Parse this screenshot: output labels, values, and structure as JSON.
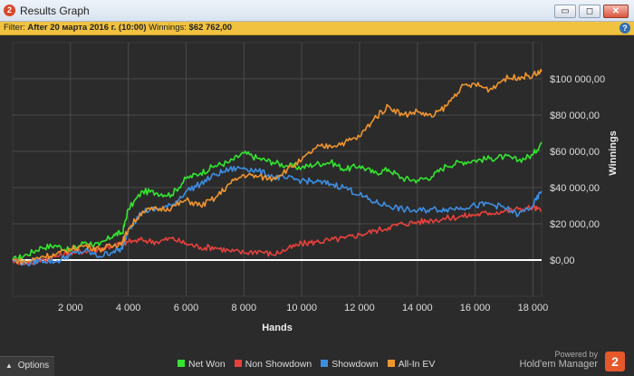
{
  "window": {
    "title": "Results Graph",
    "app_icon": "2",
    "buttons": {
      "minimize": "▭",
      "restore": "◻",
      "close": "✕"
    }
  },
  "filter": {
    "label": "Filter:",
    "date_value": "After 20 марта 2016 г. (10:00)",
    "winnings_label": "Winnings:",
    "winnings_value": "$62 762,00",
    "help_icon": "?"
  },
  "chart_data": {
    "type": "line",
    "xlabel": "Hands",
    "ylabel": "Winnings",
    "xlim": [
      0,
      18300
    ],
    "ylim": [
      -20000,
      120000
    ],
    "x_ticks": [
      2000,
      4000,
      6000,
      8000,
      10000,
      12000,
      14000,
      16000,
      18000
    ],
    "x_tick_labels": [
      "2 000",
      "4 000",
      "6 000",
      "8 000",
      "10 000",
      "12 000",
      "14 000",
      "16 000",
      "18 000"
    ],
    "y_ticks": [
      0,
      20000,
      40000,
      60000,
      80000,
      100000
    ],
    "y_tick_labels": [
      "$0,00",
      "$20 000,00",
      "$40 000,00",
      "$60 000,00",
      "$80 000,00",
      "$100 000,00"
    ],
    "grid": true,
    "legend": "bottom",
    "colors": {
      "background": "#2b2b2b",
      "grid": "#4a4a4a",
      "zero_line": "#ffffff"
    },
    "series": [
      {
        "name": "Net Won",
        "color": "#33e62e",
        "x": [
          0,
          500,
          1000,
          1500,
          2000,
          2500,
          3000,
          3500,
          3800,
          4000,
          4500,
          5000,
          5500,
          6000,
          6500,
          7000,
          7500,
          8000,
          8500,
          9000,
          9500,
          10000,
          10500,
          11000,
          11500,
          12000,
          12500,
          13000,
          13500,
          14000,
          14500,
          15000,
          15500,
          16000,
          16500,
          17000,
          17500,
          18000,
          18300
        ],
        "y": [
          0,
          3000,
          7000,
          8000,
          5000,
          10000,
          8000,
          14000,
          15000,
          28000,
          38000,
          37000,
          36000,
          45000,
          48000,
          52000,
          54000,
          59000,
          56000,
          54000,
          52000,
          51000,
          53000,
          54000,
          50000,
          52000,
          48000,
          50000,
          45000,
          44000,
          46000,
          52000,
          54000,
          55000,
          56000,
          57000,
          55000,
          58000,
          65000
        ]
      },
      {
        "name": "Non Showdown",
        "color": "#e8413c",
        "x": [
          0,
          500,
          1000,
          1500,
          2000,
          2500,
          3000,
          3500,
          4000,
          4500,
          5000,
          5500,
          6000,
          6500,
          7000,
          7500,
          8000,
          8500,
          9000,
          9500,
          10000,
          10500,
          11000,
          11500,
          12000,
          12500,
          13000,
          13500,
          14000,
          14500,
          15000,
          15500,
          16000,
          16500,
          17000,
          17500,
          18000,
          18300
        ],
        "y": [
          0,
          -2000,
          0,
          2000,
          4000,
          5000,
          6000,
          8000,
          10000,
          11000,
          10000,
          12000,
          9000,
          7000,
          7000,
          5000,
          4000,
          5000,
          3000,
          6000,
          9000,
          10000,
          11000,
          12000,
          14000,
          16000,
          18000,
          20000,
          21000,
          22000,
          23000,
          24000,
          25000,
          26000,
          27000,
          28000,
          29000,
          27000
        ]
      },
      {
        "name": "Showdown",
        "color": "#3d8ee3",
        "x": [
          0,
          500,
          1000,
          1500,
          2000,
          2500,
          3000,
          3500,
          3800,
          4000,
          4500,
          5000,
          5500,
          6000,
          6500,
          7000,
          7500,
          8000,
          8500,
          9000,
          9500,
          10000,
          10500,
          11000,
          11500,
          12000,
          12500,
          13000,
          13500,
          14000,
          14500,
          15000,
          15500,
          16000,
          16500,
          17000,
          17500,
          18000,
          18300
        ],
        "y": [
          0,
          -2000,
          0,
          -1000,
          3000,
          5000,
          2000,
          5000,
          6000,
          17000,
          27000,
          28000,
          30000,
          38000,
          42000,
          47000,
          50000,
          51000,
          49000,
          46000,
          45000,
          44000,
          43000,
          42000,
          40000,
          36000,
          32000,
          30000,
          28000,
          27000,
          28000,
          28000,
          29000,
          30000,
          31000,
          29000,
          25000,
          30000,
          38000
        ]
      },
      {
        "name": "All-In EV",
        "color": "#f0952e",
        "x": [
          0,
          500,
          1000,
          1500,
          2000,
          2500,
          3000,
          3500,
          3800,
          4000,
          4500,
          5000,
          5500,
          6000,
          6500,
          7000,
          7500,
          8000,
          8500,
          9000,
          9500,
          10000,
          10500,
          11000,
          11500,
          12000,
          12500,
          13000,
          13500,
          14000,
          14500,
          15000,
          15500,
          16000,
          16500,
          17000,
          17500,
          18000,
          18300
        ],
        "y": [
          0,
          -1000,
          2000,
          3000,
          6000,
          8000,
          6000,
          8000,
          10000,
          17000,
          27000,
          28000,
          29000,
          33000,
          30000,
          34000,
          42000,
          47000,
          46000,
          45000,
          50000,
          55000,
          62000,
          63000,
          65000,
          68000,
          78000,
          85000,
          80000,
          82000,
          79000,
          85000,
          95000,
          97000,
          94000,
          100000,
          101000,
          102000,
          104000
        ]
      }
    ]
  },
  "footer": {
    "options_label": "Options",
    "powered_by": "Powered by",
    "brand": "Hold'em Manager",
    "logo_text": "2"
  }
}
